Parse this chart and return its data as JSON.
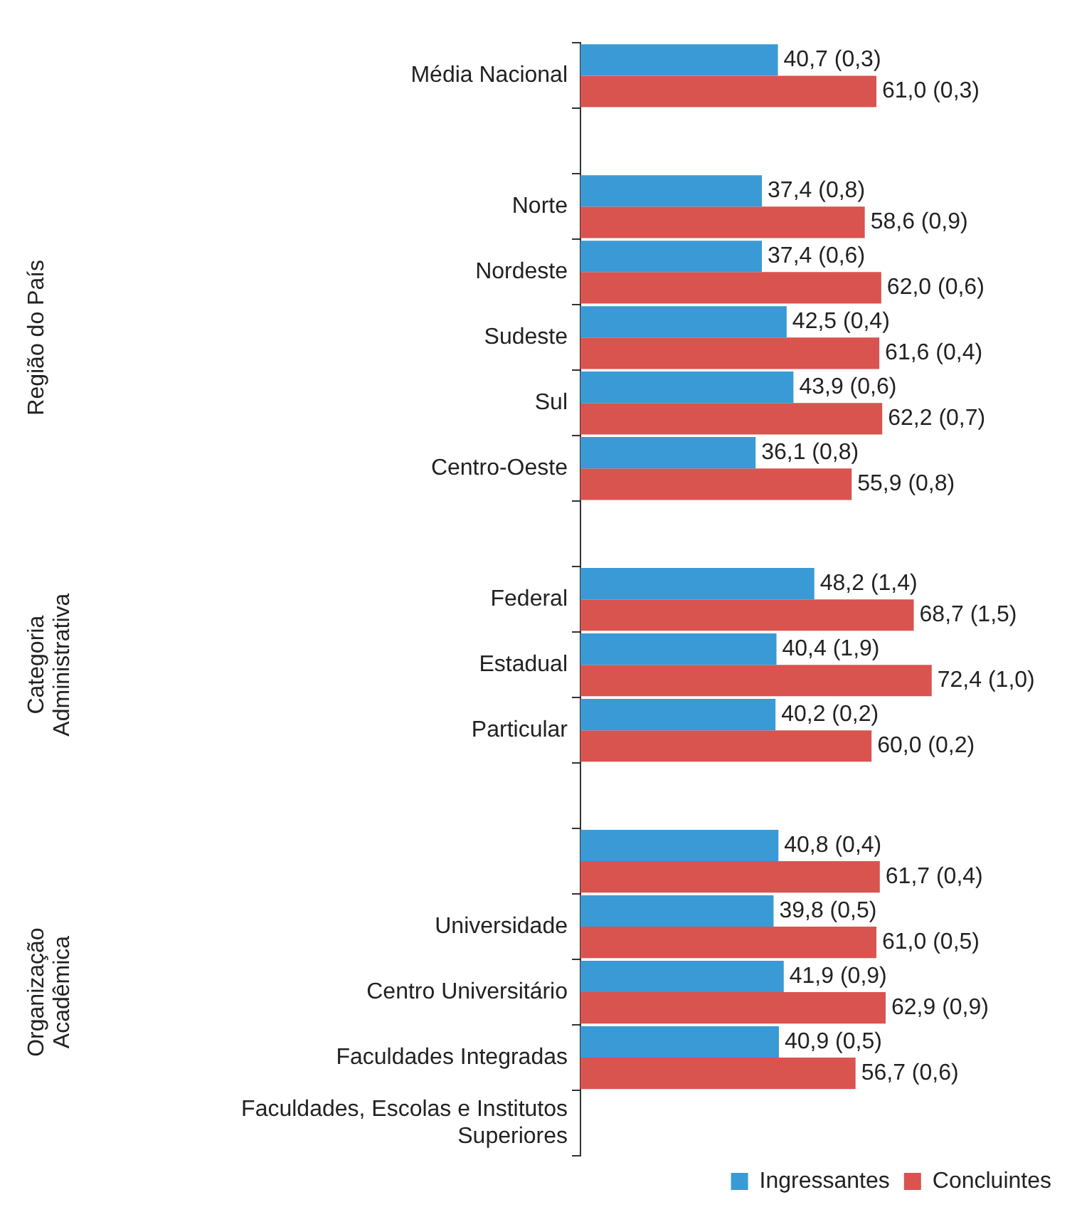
{
  "chart_data": {
    "type": "bar",
    "orientation": "horizontal",
    "categories": [
      "Média Nacional",
      null,
      "Norte",
      "Nordeste",
      "Sudeste",
      "Sul",
      "Centro-Oeste",
      null,
      "Federal",
      "Estadual",
      "Particular",
      null,
      null,
      "Universidade",
      "Centro Universitário",
      "Faculdades Integradas",
      "Faculdades, Escolas e Institutos Superiores"
    ],
    "series": [
      {
        "name": "Ingressantes",
        "color": "#3a9ad5",
        "values": [
          40.7,
          null,
          37.4,
          37.4,
          42.5,
          43.9,
          36.1,
          null,
          48.2,
          40.4,
          40.2,
          null,
          40.8,
          39.8,
          41.9,
          40.9,
          null
        ],
        "value_labels": [
          "40,7 (0,3)",
          null,
          "37,4 (0,8)",
          "37,4 (0,6)",
          "42,5 (0,4)",
          "43,9 (0,6)",
          "36,1 (0,8)",
          null,
          "48,2 (1,4)",
          "40,4 (1,9)",
          "40,2 (0,2)",
          null,
          "40,8 (0,4)",
          "39,8 (0,5)",
          "41,9 (0,9)",
          "40,9 (0,5)",
          null
        ]
      },
      {
        "name": "Concluintes",
        "color": "#d9534f",
        "values": [
          61.0,
          null,
          58.6,
          62.0,
          61.6,
          62.2,
          55.9,
          null,
          68.7,
          72.4,
          60.0,
          null,
          61.7,
          61.0,
          62.9,
          56.7,
          null
        ],
        "value_labels": [
          "61,0 (0,3)",
          null,
          "58,6 (0,9)",
          "62,0 (0,6)",
          "61,6 (0,4)",
          "62,2 (0,7)",
          "55,9 (0,8)",
          null,
          "68,7 (1,5)",
          "72,4 (1,0)",
          "60,0 (0,2)",
          null,
          "61,7 (0,4)",
          "61,0 (0,5)",
          "62,9 (0,9)",
          "56,7 (0,6)",
          null
        ]
      }
    ],
    "tick_labels": "y",
    "legend": "bottom right",
    "annotations": [
      "Região do País",
      "Categoria Administrativa",
      "Organização Acadêmica"
    ]
  }
}
